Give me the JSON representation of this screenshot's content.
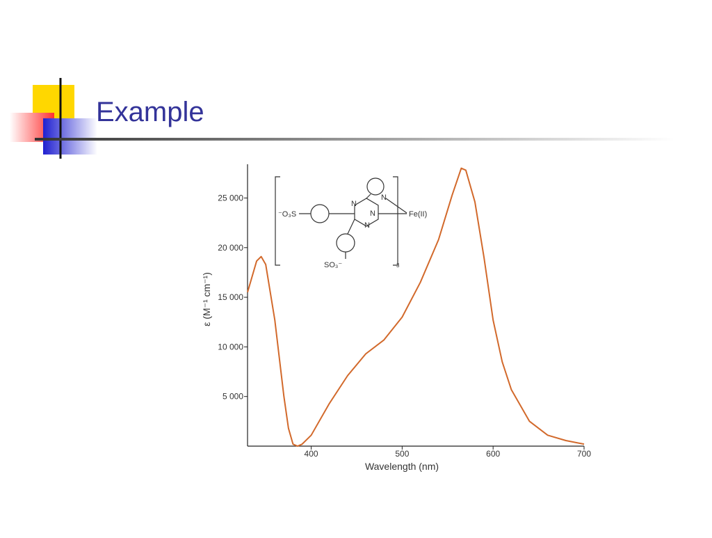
{
  "slide": {
    "title": "Example"
  },
  "chart_data": {
    "type": "line",
    "x_label": "Wavelength (nm)",
    "y_label": "ε (M⁻¹ cm⁻¹)",
    "annotations": [
      "⁻O₃S",
      "N",
      "N",
      "N",
      "N",
      "Fe(II)",
      "SO₃⁻",
      "3"
    ],
    "x": [
      330,
      340,
      345,
      350,
      360,
      370,
      375,
      380,
      385,
      390,
      400,
      420,
      440,
      460,
      480,
      500,
      520,
      540,
      555,
      565,
      570,
      580,
      590,
      600,
      610,
      620,
      640,
      660,
      680,
      700
    ],
    "series": [
      {
        "name": "ε",
        "color": "#d2692b",
        "values": [
          15500,
          18650,
          19100,
          18300,
          12700,
          5000,
          1800,
          200,
          0,
          200,
          1100,
          4300,
          7100,
          9300,
          10700,
          13000,
          16500,
          20800,
          25300,
          28000,
          27800,
          24600,
          19000,
          12700,
          8500,
          5700,
          2500,
          1100,
          560,
          200
        ]
      }
    ],
    "xlim": [
      330,
      700
    ],
    "ylim": [
      0,
      28400
    ],
    "xticks": [
      400,
      500,
      600,
      700
    ],
    "yticks": [
      {
        "value": 5000,
        "label": "5 000"
      },
      {
        "value": 10000,
        "label": "10 000"
      },
      {
        "value": 15000,
        "label": "15 000"
      },
      {
        "value": 20000,
        "label": "20 000"
      },
      {
        "value": 25000,
        "label": "25 000"
      }
    ]
  }
}
